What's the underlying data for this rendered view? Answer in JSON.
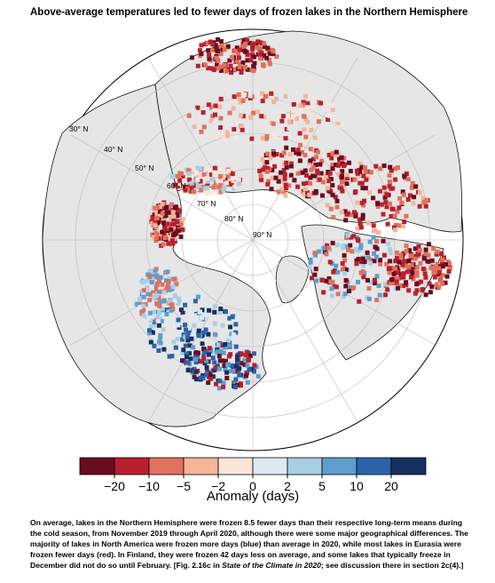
{
  "title": "Above-average temperatures led to fewer days of frozen lakes in the Northern Hemisphere",
  "latitude_labels": [
    "30° N",
    "40° N",
    "50° N",
    "60° N",
    "70° N",
    "80° N",
    "90° N"
  ],
  "colorbar": {
    "colors": [
      "#6b0c1f",
      "#b8202f",
      "#e0715c",
      "#f4b599",
      "#fbe4d8",
      "#dce9f3",
      "#a7cfe4",
      "#5d9ecc",
      "#2b63aa",
      "#16305f"
    ],
    "ticks": [
      {
        "value": -20,
        "label": "−20"
      },
      {
        "value": -10,
        "label": "−10"
      },
      {
        "value": -5,
        "label": "−5"
      },
      {
        "value": -2,
        "label": "−2"
      },
      0,
      2,
      5,
      10,
      20
    ],
    "label": "Anomaly (days)"
  },
  "caption": [
    "On average, lakes in the Northern Hemisphere were frozen 8.5 fewer days than their respective long-term means during the cold season, from November 2019 through April 2020, although there were some major geographical differences. The majority of lakes in North America were frozen more days (blue) than average in 2020, while most lakes in Eurasia were frozen fewer days (red). In Finland, they were frozen 42 days less on average, and some lakes that typically freeze in December did not do so until February. [Fig. 2.16c in ",
    "State of the Climate in 2020",
    "; see discussion there in section 2c(4).]"
  ]
}
